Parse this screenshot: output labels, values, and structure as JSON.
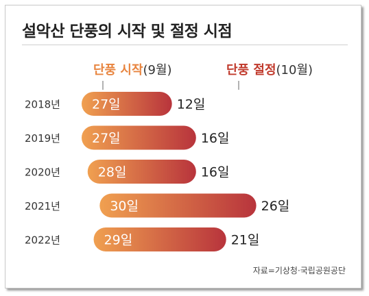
{
  "title": "설악산 단풍의 시작 및 절정 시점",
  "legend": {
    "start_label": "단풍 시작",
    "start_month": "(9월)",
    "end_label": "단풍 절정",
    "end_month": "(10월)"
  },
  "source": "자료=기상청·국립공원공단",
  "colors": {
    "start": "#f0a050",
    "end": "#b8343c",
    "title": "#222222"
  },
  "chart_data": {
    "type": "bar",
    "categories": [
      "2018년",
      "2019년",
      "2020년",
      "2021년",
      "2022년"
    ],
    "series": [
      {
        "name": "단풍 시작",
        "values": [
          27,
          27,
          28,
          30,
          29
        ],
        "labels": [
          "27일",
          "27일",
          "28일",
          "30일",
          "29일"
        ]
      },
      {
        "name": "단풍 절정",
        "values": [
          12,
          16,
          16,
          26,
          21
        ],
        "labels": [
          "12일",
          "16일",
          "16일",
          "26일",
          "21일"
        ]
      }
    ],
    "xlabel": "",
    "ylabel": "",
    "grid": false
  }
}
